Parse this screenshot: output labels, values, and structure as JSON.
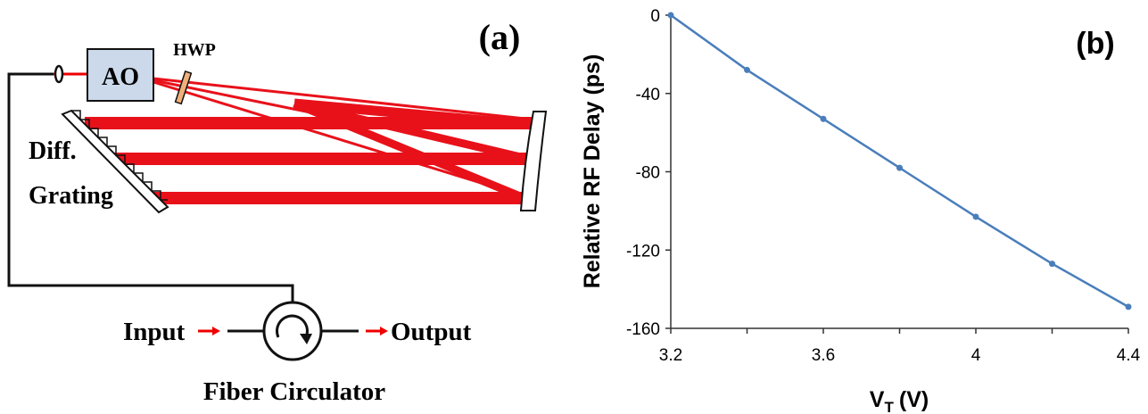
{
  "diagram": {
    "panel_label": "(a)",
    "ao": "AO",
    "hwp": "HWP",
    "grating_line1": "Diff.",
    "grating_line2": "Grating",
    "input": "Input",
    "output": "Output",
    "circulator": "Fiber Circulator"
  },
  "chart_data": {
    "type": "line",
    "panel_label": "(b)",
    "ylabel": "Relative RF Delay (ps)",
    "xlabel": "V",
    "xlabel_subscript": "T",
    "xlabel_unit": "(V)",
    "x": [
      3.2,
      3.4,
      3.6,
      3.8,
      4.0,
      4.2,
      4.4
    ],
    "series": [
      {
        "color": "#4a7ebb",
        "values": [
          0,
          -28,
          -53,
          -78,
          -103,
          -127,
          -149
        ]
      }
    ],
    "xlim": [
      3.2,
      4.4
    ],
    "xticks": [
      3.2,
      3.6,
      4,
      4.4
    ],
    "xminor_ticks": [
      3.4,
      3.8,
      4.2
    ],
    "ylim": [
      -160,
      0
    ],
    "yticks": [
      0,
      -40,
      -80,
      -120,
      -160
    ]
  }
}
